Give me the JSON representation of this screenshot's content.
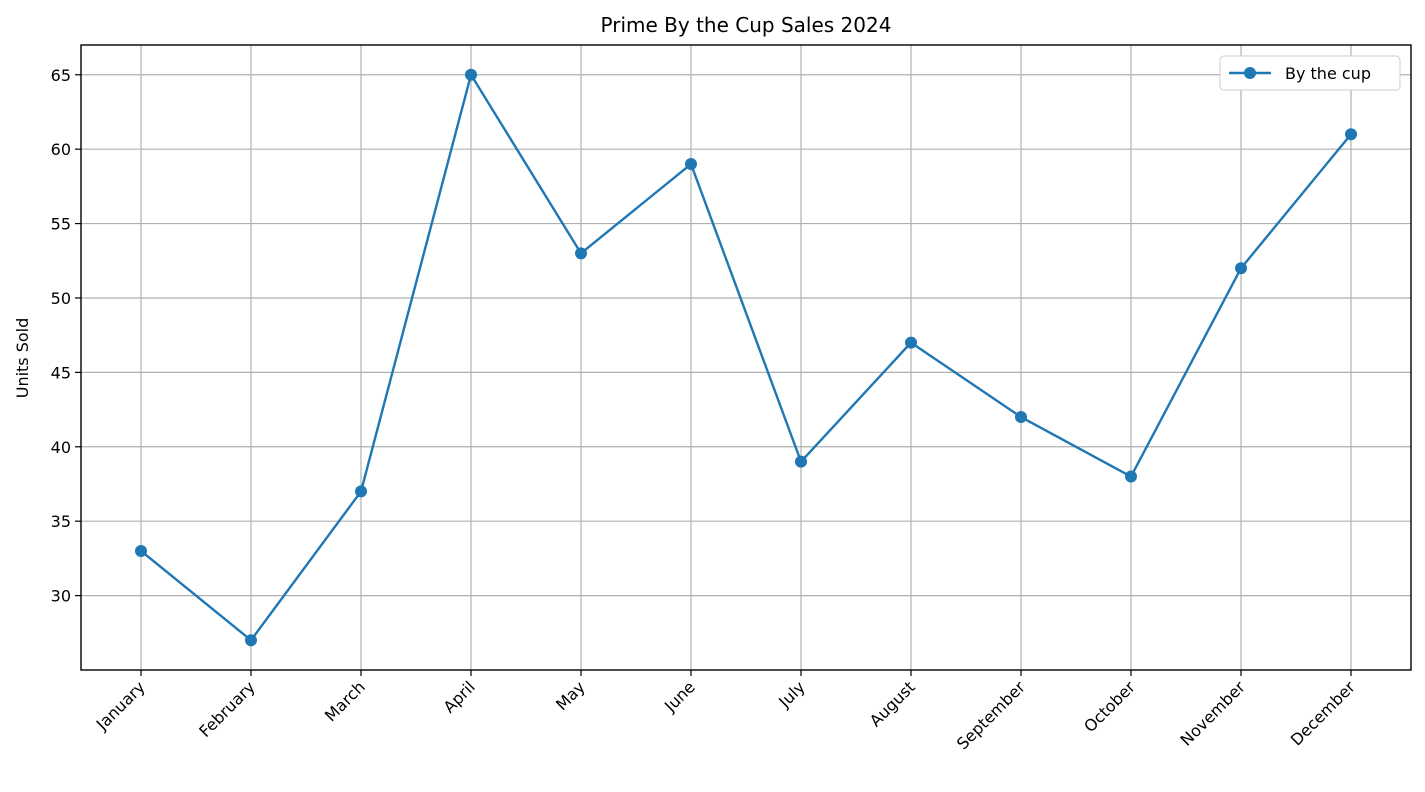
{
  "chart_data": {
    "type": "line",
    "title": "Prime By the Cup Sales 2024",
    "xlabel": "",
    "ylabel": "Units Sold",
    "categories": [
      "January",
      "February",
      "March",
      "April",
      "May",
      "June",
      "July",
      "August",
      "September",
      "October",
      "November",
      "December"
    ],
    "series": [
      {
        "name": "By the cup",
        "values": [
          33,
          27,
          37,
          65,
          53,
          59,
          39,
          47,
          42,
          38,
          52,
          61
        ],
        "color": "#1f77b4",
        "marker": "circle"
      }
    ],
    "yticks": [
      30,
      35,
      40,
      45,
      50,
      55,
      60,
      65
    ],
    "ylim": [
      25,
      67
    ],
    "grid": true,
    "legend": "top-right"
  }
}
